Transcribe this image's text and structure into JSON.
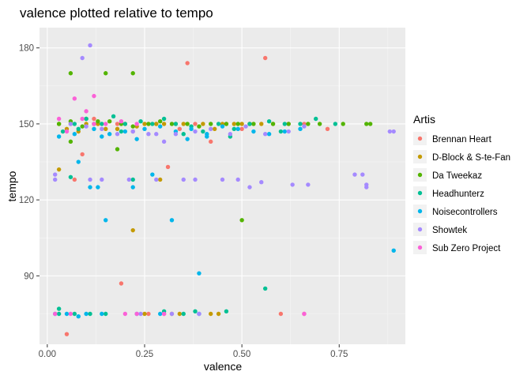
{
  "chart_data": {
    "type": "scatter",
    "title": "valence plotted relative to tempo",
    "xlabel": "valence",
    "ylabel": "tempo",
    "xlim": [
      -0.02,
      0.92
    ],
    "ylim": [
      63,
      188
    ],
    "x_ticks": [
      0.0,
      0.25,
      0.5,
      0.75
    ],
    "x_tick_labels": [
      "0.00",
      "0.25",
      "0.50",
      "0.75"
    ],
    "y_ticks": [
      90,
      120,
      150,
      180
    ],
    "y_tick_labels": [
      "90",
      "120",
      "150",
      "180"
    ],
    "grid": true,
    "legend_title": "Artis",
    "legend_position": "right",
    "series": [
      {
        "name": "Brennan Heart",
        "color": "#F8766D",
        "points": [
          [
            0.05,
            67
          ],
          [
            0.19,
            87
          ],
          [
            0.36,
            174
          ],
          [
            0.56,
            176
          ],
          [
            0.6,
            75
          ],
          [
            0.66,
            75
          ],
          [
            0.09,
            138
          ],
          [
            0.31,
            133
          ],
          [
            0.42,
            143
          ],
          [
            0.5,
            148
          ],
          [
            0.72,
            148
          ],
          [
            0.07,
            128
          ],
          [
            0.18,
            150
          ],
          [
            0.28,
            150
          ],
          [
            0.38,
            150
          ],
          [
            0.46,
            150
          ],
          [
            0.52,
            150
          ],
          [
            0.58,
            150
          ],
          [
            0.62,
            150
          ],
          [
            0.66,
            150
          ],
          [
            0.34,
            148
          ],
          [
            0.22,
            147
          ],
          [
            0.12,
            152
          ],
          [
            0.26,
            75
          ],
          [
            0.3,
            75
          ]
        ]
      },
      {
        "name": "D-Block & S-te-Fan",
        "color": "#C49A00",
        "points": [
          [
            0.03,
            132
          ],
          [
            0.22,
            108
          ],
          [
            0.29,
            128
          ],
          [
            0.03,
            150
          ],
          [
            0.06,
            150
          ],
          [
            0.1,
            150
          ],
          [
            0.15,
            148
          ],
          [
            0.2,
            150
          ],
          [
            0.25,
            150
          ],
          [
            0.3,
            150
          ],
          [
            0.35,
            150
          ],
          [
            0.4,
            150
          ],
          [
            0.45,
            150
          ],
          [
            0.5,
            150
          ],
          [
            0.55,
            150
          ],
          [
            0.05,
            148
          ],
          [
            0.08,
            147
          ],
          [
            0.13,
            150
          ],
          [
            0.18,
            148
          ],
          [
            0.23,
            149
          ],
          [
            0.28,
            150
          ],
          [
            0.33,
            150
          ],
          [
            0.43,
            148
          ],
          [
            0.48,
            150
          ],
          [
            0.25,
            75
          ],
          [
            0.32,
            75
          ],
          [
            0.42,
            75
          ],
          [
            0.34,
            75
          ],
          [
            0.44,
            75
          ],
          [
            0.52,
            150
          ]
        ]
      },
      {
        "name": "Da Tweekaz",
        "color": "#53B400",
        "points": [
          [
            0.06,
            170
          ],
          [
            0.15,
            170
          ],
          [
            0.22,
            170
          ],
          [
            0.18,
            140
          ],
          [
            0.5,
            112
          ],
          [
            0.03,
            150
          ],
          [
            0.06,
            151
          ],
          [
            0.09,
            149
          ],
          [
            0.12,
            150
          ],
          [
            0.16,
            151
          ],
          [
            0.19,
            150
          ],
          [
            0.22,
            149
          ],
          [
            0.26,
            150
          ],
          [
            0.29,
            151
          ],
          [
            0.32,
            150
          ],
          [
            0.36,
            150
          ],
          [
            0.39,
            149
          ],
          [
            0.42,
            150
          ],
          [
            0.46,
            150
          ],
          [
            0.49,
            150
          ],
          [
            0.53,
            150
          ],
          [
            0.58,
            150
          ],
          [
            0.62,
            150
          ],
          [
            0.67,
            150
          ],
          [
            0.7,
            150
          ],
          [
            0.76,
            150
          ],
          [
            0.82,
            150
          ],
          [
            0.83,
            150
          ],
          [
            0.06,
            143
          ],
          [
            0.1,
            152
          ],
          [
            0.13,
            151
          ]
        ]
      },
      {
        "name": "Headhunterz",
        "color": "#00C094",
        "points": [
          [
            0.06,
            129
          ],
          [
            0.22,
            128
          ],
          [
            0.56,
            85
          ],
          [
            0.04,
            147
          ],
          [
            0.07,
            150
          ],
          [
            0.1,
            152
          ],
          [
            0.14,
            150
          ],
          [
            0.17,
            153
          ],
          [
            0.2,
            150
          ],
          [
            0.24,
            151
          ],
          [
            0.27,
            150
          ],
          [
            0.3,
            152
          ],
          [
            0.33,
            150
          ],
          [
            0.37,
            149
          ],
          [
            0.4,
            147
          ],
          [
            0.44,
            150
          ],
          [
            0.48,
            148
          ],
          [
            0.52,
            150
          ],
          [
            0.57,
            151
          ],
          [
            0.61,
            150
          ],
          [
            0.65,
            150
          ],
          [
            0.69,
            152
          ],
          [
            0.74,
            150
          ],
          [
            0.03,
            77
          ],
          [
            0.03,
            75
          ],
          [
            0.07,
            75
          ],
          [
            0.11,
            75
          ],
          [
            0.15,
            75
          ],
          [
            0.3,
            76
          ],
          [
            0.35,
            75
          ],
          [
            0.38,
            76
          ],
          [
            0.46,
            76
          ],
          [
            0.08,
            148
          ],
          [
            0.19,
            147
          ],
          [
            0.35,
            146
          ],
          [
            0.47,
            145
          ],
          [
            0.6,
            147
          ]
        ]
      },
      {
        "name": "Noisecontrollers",
        "color": "#00B6EB",
        "points": [
          [
            0.15,
            112
          ],
          [
            0.22,
            125
          ],
          [
            0.27,
            130
          ],
          [
            0.32,
            112
          ],
          [
            0.39,
            91
          ],
          [
            0.89,
            100
          ],
          [
            0.08,
            135
          ],
          [
            0.11,
            125
          ],
          [
            0.13,
            125
          ],
          [
            0.03,
            145
          ],
          [
            0.07,
            146
          ],
          [
            0.12,
            148
          ],
          [
            0.16,
            146
          ],
          [
            0.2,
            147
          ],
          [
            0.25,
            148
          ],
          [
            0.29,
            149
          ],
          [
            0.33,
            147
          ],
          [
            0.37,
            148
          ],
          [
            0.41,
            146
          ],
          [
            0.45,
            149
          ],
          [
            0.49,
            148
          ],
          [
            0.53,
            147
          ],
          [
            0.57,
            146
          ],
          [
            0.61,
            147
          ],
          [
            0.65,
            148
          ],
          [
            0.02,
            75
          ],
          [
            0.05,
            75
          ],
          [
            0.08,
            74
          ],
          [
            0.1,
            75
          ],
          [
            0.14,
            75
          ],
          [
            0.23,
            75
          ],
          [
            0.29,
            75
          ],
          [
            0.39,
            75
          ],
          [
            0.36,
            144
          ],
          [
            0.41,
            145
          ],
          [
            0.23,
            144
          ],
          [
            0.14,
            145
          ]
        ]
      },
      {
        "name": "Showtek",
        "color": "#A58AFF",
        "points": [
          [
            0.11,
            181
          ],
          [
            0.09,
            176
          ],
          [
            0.02,
            130
          ],
          [
            0.02,
            128
          ],
          [
            0.11,
            128
          ],
          [
            0.14,
            128
          ],
          [
            0.21,
            128
          ],
          [
            0.28,
            128
          ],
          [
            0.35,
            128
          ],
          [
            0.38,
            128
          ],
          [
            0.45,
            128
          ],
          [
            0.49,
            128
          ],
          [
            0.52,
            125
          ],
          [
            0.55,
            127
          ],
          [
            0.63,
            126
          ],
          [
            0.67,
            126
          ],
          [
            0.79,
            130
          ],
          [
            0.81,
            130
          ],
          [
            0.82,
            126
          ],
          [
            0.82,
            125
          ],
          [
            0.88,
            147
          ],
          [
            0.89,
            147
          ],
          [
            0.14,
            148
          ],
          [
            0.18,
            146
          ],
          [
            0.22,
            147
          ],
          [
            0.26,
            146
          ],
          [
            0.3,
            143
          ],
          [
            0.33,
            146
          ],
          [
            0.38,
            147
          ],
          [
            0.42,
            148
          ],
          [
            0.47,
            146
          ],
          [
            0.51,
            149
          ],
          [
            0.56,
            146
          ],
          [
            0.62,
            147
          ],
          [
            0.66,
            149
          ],
          [
            0.24,
            75
          ],
          [
            0.32,
            75
          ],
          [
            0.39,
            75
          ],
          [
            0.06,
            150
          ],
          [
            0.1,
            149
          ],
          [
            0.28,
            146
          ]
        ]
      },
      {
        "name": "Sub Zero Project",
        "color": "#FB61D7",
        "points": [
          [
            0.07,
            160
          ],
          [
            0.12,
            161
          ],
          [
            0.1,
            155
          ],
          [
            0.03,
            152
          ],
          [
            0.05,
            147
          ],
          [
            0.09,
            152
          ],
          [
            0.12,
            150
          ],
          [
            0.15,
            150
          ],
          [
            0.19,
            151
          ],
          [
            0.23,
            150
          ],
          [
            0.02,
            75
          ],
          [
            0.06,
            75
          ],
          [
            0.2,
            75
          ],
          [
            0.23,
            75
          ],
          [
            0.3,
            75
          ],
          [
            0.66,
            75
          ]
        ]
      }
    ]
  }
}
